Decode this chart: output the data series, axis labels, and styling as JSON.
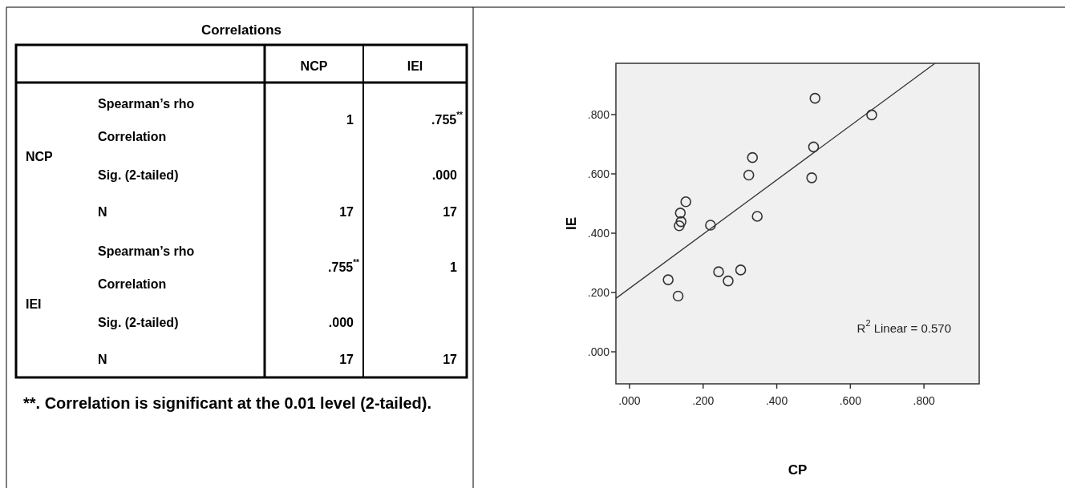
{
  "chart_data": [
    {
      "type": "other",
      "title": "Correlations",
      "categories": [
        "NCP",
        "IEI"
      ],
      "y_categories": [
        "NCP",
        "IEI"
      ],
      "cell_labels": [
        [
          "Spearman’s rho Correlation",
          "1",
          ".755$^{**}$"
        ],
        [
          "Sig. (2-tailed)",
          null,
          ".000"
        ],
        [
          "N",
          "17",
          "17"
        ],
        [
          "Spearman’s rho Correlation",
          ".755$^{**}$",
          "1"
        ],
        [
          "Sig. (2-tailed)",
          ".000",
          null
        ],
        [
          "N",
          "17",
          "17"
        ]
      ],
      "annotations": [
        "**. Correlation is significant at the 0.01 level (2-tailed)."
      ]
    },
    {
      "type": "scatter",
      "xlabel": "CP",
      "ylabel": "IE",
      "xlim": [
        -0.037,
        0.95
      ],
      "ylim": [
        -0.108,
        0.973
      ],
      "xticks": [
        {
          "value": 0,
          "label": ".000"
        },
        {
          "value": 0.2,
          "label": ".200"
        },
        {
          "value": 0.4,
          "label": ".400"
        },
        {
          "value": 0.6,
          "label": ".600"
        },
        {
          "value": 0.8,
          "label": ".800"
        }
      ],
      "yticks": [
        {
          "value": 0,
          "label": ".000"
        },
        {
          "value": 0.2,
          "label": ".200"
        },
        {
          "value": 0.4,
          "label": ".400"
        },
        {
          "value": 0.6,
          "label": ".600"
        },
        {
          "value": 0.8,
          "label": ".800"
        }
      ],
      "annotations": [
        "R$^{2}$ Linear = 0.570"
      ],
      "series": [
        {
          "type": "scatter",
          "marker": "circle",
          "color": "#333333",
          "x": [
            0.504,
            0.658,
            0.5,
            0.334,
            0.324,
            0.495,
            0.153,
            0.138,
            0.14,
            0.135,
            0.22,
            0.347,
            0.242,
            0.268,
            0.302,
            0.105,
            0.132
          ],
          "values": [
            0.855,
            0.799,
            0.691,
            0.655,
            0.596,
            0.587,
            0.506,
            0.468,
            0.439,
            0.425,
            0.427,
            0.457,
            0.27,
            0.239,
            0.276,
            0.243,
            0.188
          ]
        },
        {
          "type": "line",
          "marker": "none",
          "color": "#333333",
          "x": [
            -0.037,
            0.83
          ],
          "values": [
            0.18,
            0.973
          ]
        }
      ]
    }
  ]
}
